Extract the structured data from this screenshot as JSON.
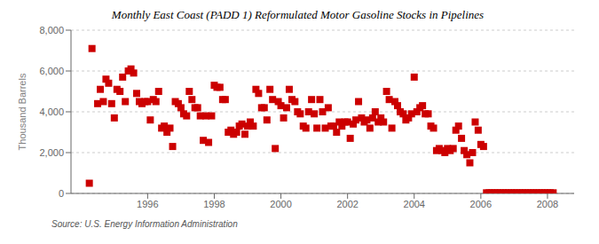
{
  "chart_data": {
    "type": "scatter",
    "title": "Monthly East Coast (PADD 1) Reformulated Motor Gasoline Stocks in Pipelines",
    "ylabel": "Thousand Barrels",
    "annotations": [
      "Source: U.S. Energy Information Administration"
    ],
    "color": "#cc0000",
    "marker": "square",
    "grid": "y",
    "xlim": [
      1993.7,
      2008.8
    ],
    "ylim": [
      0,
      8000
    ],
    "xticks": [
      1996,
      1998,
      2000,
      2002,
      2004,
      2006,
      2008
    ],
    "yticks": [
      0,
      {
        "value": 2000,
        "label": "2,000"
      },
      {
        "value": 4000,
        "label": "4,000"
      },
      {
        "value": 6000,
        "label": "6,000"
      },
      {
        "value": 8000,
        "label": "8,000"
      }
    ],
    "x": [
      1994.25,
      1994.33,
      1994.5,
      1994.58,
      1994.67,
      1994.75,
      1994.83,
      1994.92,
      1995.0,
      1995.08,
      1995.17,
      1995.25,
      1995.33,
      1995.42,
      1995.5,
      1995.58,
      1995.67,
      1995.75,
      1995.83,
      1995.92,
      1996.0,
      1996.08,
      1996.17,
      1996.25,
      1996.33,
      1996.42,
      1996.5,
      1996.58,
      1996.67,
      1996.75,
      1996.83,
      1996.92,
      1997.0,
      1997.08,
      1997.17,
      1997.25,
      1997.33,
      1997.42,
      1997.5,
      1997.58,
      1997.67,
      1997.75,
      1997.83,
      1997.92,
      1998.0,
      1998.08,
      1998.17,
      1998.25,
      1998.33,
      1998.42,
      1998.5,
      1998.58,
      1998.67,
      1998.75,
      1998.83,
      1998.92,
      1999.0,
      1999.08,
      1999.17,
      1999.25,
      1999.33,
      1999.42,
      1999.5,
      1999.58,
      1999.67,
      1999.75,
      1999.83,
      1999.92,
      2000.0,
      2000.08,
      2000.17,
      2000.25,
      2000.33,
      2000.42,
      2000.5,
      2000.58,
      2000.67,
      2000.75,
      2000.83,
      2000.92,
      2001.0,
      2001.08,
      2001.17,
      2001.25,
      2001.33,
      2001.42,
      2001.5,
      2001.58,
      2001.67,
      2001.75,
      2001.83,
      2001.92,
      2002.0,
      2002.08,
      2002.17,
      2002.25,
      2002.33,
      2002.42,
      2002.5,
      2002.58,
      2002.67,
      2002.75,
      2002.83,
      2002.92,
      2003.0,
      2003.08,
      2003.17,
      2003.25,
      2003.33,
      2003.42,
      2003.5,
      2003.58,
      2003.67,
      2003.75,
      2003.83,
      2003.92,
      2004.0,
      2004.08,
      2004.17,
      2004.25,
      2004.33,
      2004.42,
      2004.5,
      2004.58,
      2004.67,
      2004.75,
      2004.83,
      2004.92,
      2005.0,
      2005.08,
      2005.17,
      2005.25,
      2005.33,
      2005.42,
      2005.5,
      2005.58,
      2005.67,
      2005.75,
      2005.83,
      2005.92,
      2006.0,
      2006.08,
      2006.17,
      2006.25,
      2006.33,
      2006.42,
      2006.5,
      2006.58,
      2006.67,
      2006.75,
      2006.83,
      2006.92,
      2007.0,
      2007.08,
      2007.17,
      2007.25,
      2007.33,
      2007.42,
      2007.5,
      2007.58,
      2007.67,
      2007.75,
      2007.83,
      2007.92,
      2008.0,
      2008.08,
      2008.17
    ],
    "values": [
      500,
      7100,
      4400,
      5100,
      4500,
      5600,
      5400,
      4400,
      3700,
      5100,
      5000,
      5700,
      4500,
      6000,
      6100,
      5900,
      4900,
      4500,
      4400,
      4500,
      4500,
      3600,
      4600,
      4500,
      5000,
      3200,
      3300,
      3000,
      3200,
      2300,
      4500,
      4400,
      4200,
      3900,
      3800,
      5000,
      4600,
      4200,
      4200,
      3800,
      2600,
      3800,
      2500,
      3800,
      5300,
      5200,
      5200,
      4600,
      4600,
      3000,
      3100,
      2900,
      3000,
      3300,
      3400,
      2900,
      3300,
      3500,
      3300,
      5100,
      4900,
      4200,
      4200,
      3600,
      5100,
      4600,
      2200,
      4500,
      4300,
      3700,
      4200,
      5100,
      4600,
      4500,
      4000,
      3900,
      3300,
      3200,
      4000,
      4600,
      3900,
      3200,
      4600,
      4000,
      3200,
      4200,
      3300,
      3300,
      3000,
      3500,
      3300,
      3500,
      3500,
      2700,
      3400,
      3600,
      4500,
      3700,
      3500,
      3600,
      3200,
      3700,
      4000,
      3500,
      3700,
      3500,
      5000,
      4600,
      3200,
      4500,
      4300,
      4000,
      3900,
      3600,
      3700,
      3900,
      5700,
      4000,
      4200,
      4300,
      3900,
      3900,
      3300,
      3200,
      2100,
      2200,
      2100,
      2000,
      2200,
      2100,
      2200,
      3100,
      3300,
      2700,
      2100,
      1900,
      1500,
      2000,
      3500,
      3100,
      2400,
      2300,
      30,
      30,
      30,
      30,
      30,
      30,
      30,
      30,
      30,
      30,
      30,
      30,
      30,
      30,
      30,
      30,
      30,
      30,
      30,
      30,
      30,
      30,
      30,
      30,
      30
    ]
  }
}
